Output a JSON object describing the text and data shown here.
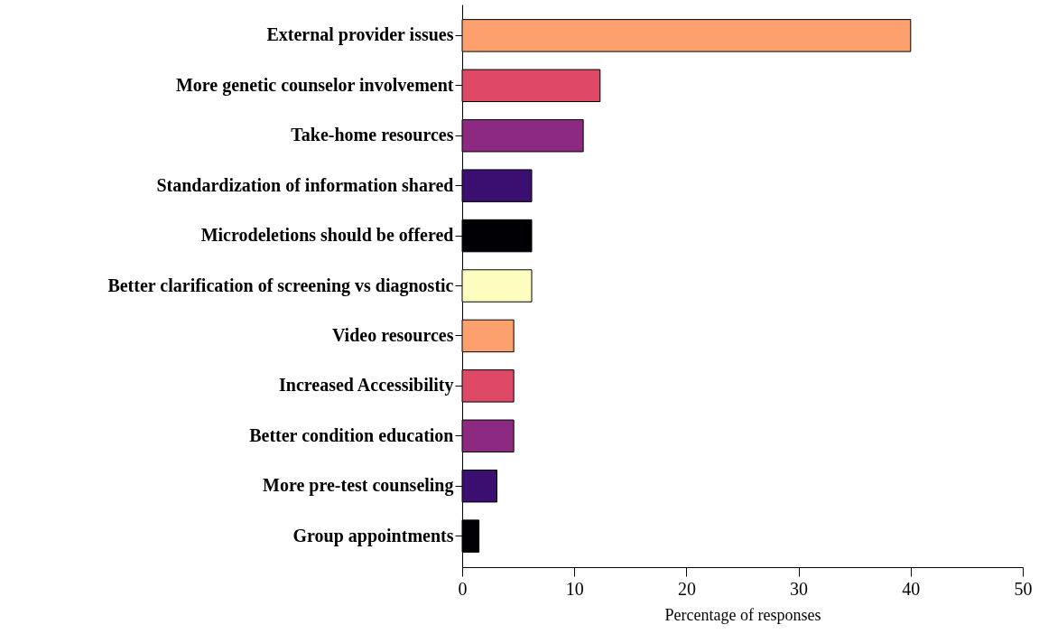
{
  "chart_data": {
    "type": "bar",
    "orientation": "horizontal",
    "xlabel": "Percentage of responses",
    "categories": [
      "External provider issues",
      "More genetic counselor involvement",
      "Take-home resources",
      "Standardization of information shared",
      "Microdeletions should be offered",
      "Better clarification of screening vs diagnostic ",
      "Video resources",
      "Increased Accessibility",
      "Better condition education",
      "More pre-test counseling",
      "Group appointments"
    ],
    "values": [
      40,
      12.3,
      10.8,
      6.2,
      6.2,
      6.2,
      4.6,
      4.6,
      4.6,
      3.1,
      1.5
    ],
    "colors": [
      "#fca06e",
      "#de4968",
      "#8c2981",
      "#3b0f70",
      "#000004",
      "#fcfdbf",
      "#fca06e",
      "#de4968",
      "#8c2981",
      "#3b0f70",
      "#000004"
    ],
    "xlim": [
      0,
      50
    ],
    "xticks": [
      0,
      10,
      20,
      30,
      40,
      50
    ],
    "grid": false
  }
}
